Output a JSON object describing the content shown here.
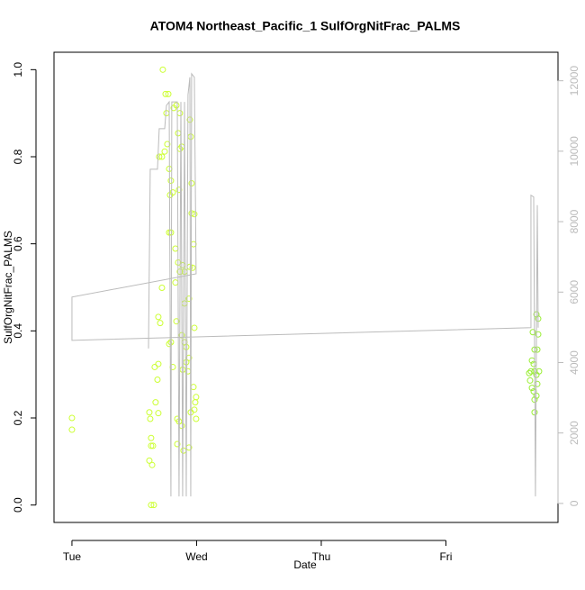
{
  "chart_data": {
    "type": "scatter",
    "title": "ATOM4 Northeast_Pacific_1 SulfOrgNitFrac_PALMS",
    "xlabel": "Date",
    "ylabel": "SulfOrgNitFrac_PALMS",
    "xlim": [
      -0.144,
      3.899
    ],
    "xticks": [
      {
        "value": 0,
        "label": "Tue"
      },
      {
        "value": 1,
        "label": "Wed"
      },
      {
        "value": 2,
        "label": "Thu"
      },
      {
        "value": 3,
        "label": "Fri"
      }
    ],
    "ylim": [
      -0.04,
      1.04
    ],
    "yticks": [
      {
        "value": 0,
        "label": "0.0"
      },
      {
        "value": 0.2,
        "label": "0.2"
      },
      {
        "value": 0.4,
        "label": "0.4"
      },
      {
        "value": 0.6,
        "label": "0.6"
      },
      {
        "value": 0.8,
        "label": "0.8"
      },
      {
        "value": 1,
        "label": "1.0"
      }
    ],
    "y2lim": [
      -540,
      12810
    ],
    "y2ticks": [
      0,
      2000,
      4000,
      6000,
      8000,
      10000,
      12000
    ],
    "series": [
      {
        "color": "#ccff33",
        "x": [
          0,
          0,
          0.635,
          0.657,
          0.621,
          0.643,
          0.635,
          0.65,
          0.635,
          0.621,
          0.628,
          0.671,
          0.693,
          0.664,
          0.693,
          0.686,
          0.693,
          0.708,
          0.722,
          0.7,
          0.722,
          0.744,
          0.729,
          0.751,
          0.773,
          0.758,
          0.765,
          0.78,
          0.794,
          0.787,
          0.809,
          0.78,
          0.794,
          0.794,
          0.809,
          0.78,
          0.816,
          0.838,
          0.866,
          0.852,
          0.866,
          0.881,
          0.859,
          0.83,
          0.852,
          0.866,
          0.888,
          0.903,
          0.83,
          0.838,
          0.845,
          0.859,
          0.881,
          0.845,
          0.895,
          0.881,
          0.903,
          0.917,
          0.888,
          0.917,
          0.939,
          0.931,
          0.903,
          0.939,
          0.946,
          0.953,
          0.96,
          0.96,
          0.982,
          0.975,
          0.946,
          0.968,
          0.982,
          0.975,
          0.996,
          0.989,
          0.982,
          0.996,
          0.953,
          0.939
        ],
        "values": [
          0.2,
          0.173,
          0,
          0,
          0.102,
          0.092,
          0.136,
          0.136,
          0.154,
          0.213,
          0.198,
          0.236,
          0.211,
          0.317,
          0.324,
          0.288,
          0.432,
          0.418,
          0.499,
          0.8,
          0.8,
          0.812,
          1.0,
          0.944,
          0.944,
          0.9,
          0.829,
          0.772,
          0.745,
          0.712,
          0.718,
          0.626,
          0.626,
          0.374,
          0.317,
          0.37,
          0.912,
          0.918,
          0.9,
          0.854,
          0.818,
          0.823,
          0.724,
          0.589,
          0.557,
          0.536,
          0.551,
          0.536,
          0.511,
          0.422,
          0.198,
          0.192,
          0.182,
          0.14,
          0.125,
          0.39,
          0.374,
          0.363,
          0.311,
          0.328,
          0.338,
          0.307,
          0.463,
          0.474,
          0.885,
          0.846,
          0.739,
          0.67,
          0.668,
          0.599,
          0.547,
          0.545,
          0.407,
          0.271,
          0.248,
          0.236,
          0.219,
          0.198,
          0.213,
          0.132
        ]
      },
      {
        "color": "#99ee33",
        "x": [
          3.726,
          3.74,
          3.697,
          3.74,
          3.711,
          3.733,
          3.69,
          3.704,
          3.682,
          3.711,
          3.747,
          3.668,
          3.726,
          3.675,
          3.69,
          3.733,
          3.704,
          3.726,
          3.711,
          3.711
        ],
        "values": [
          0.438,
          0.428,
          0.397,
          0.392,
          0.357,
          0.357,
          0.332,
          0.324,
          0.307,
          0.307,
          0.307,
          0.303,
          0.299,
          0.286,
          0.269,
          0.278,
          0.261,
          0.251,
          0.242,
          0.213
        ]
      },
      {
        "color": "#bbbbbb",
        "axis": "y2",
        "line": true,
        "x": [
          0.614,
          0.628,
          0.686,
          0.7,
          0.744,
          0.758,
          0.78,
          0.794,
          0.801,
          0.845,
          0.859,
          0.874,
          0.888,
          0.903,
          0.917,
          0.931,
          0.946,
          0.953,
          0.96,
          0.982,
          0.996,
          0,
          0,
          3.682,
          3.682,
          3.704,
          3.718,
          3.733,
          3.74
        ],
        "values": [
          4400,
          9490,
          9490,
          10640,
          10640,
          11300,
          11400,
          200,
          11400,
          11400,
          200,
          11400,
          200,
          11400,
          200,
          11600,
          12100,
          200,
          12200,
          12100,
          6520,
          5860,
          4630,
          4990,
          8750,
          8700,
          200,
          8470,
          4990
        ]
      }
    ]
  }
}
